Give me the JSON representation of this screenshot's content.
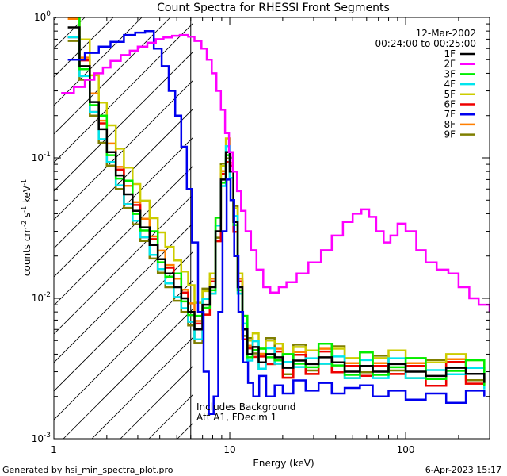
{
  "chart_data": {
    "type": "line",
    "title": "Count Spectra for RHESSI Front Segments",
    "xlabel": "Energy (keV)",
    "ylabel_parts": {
      "a": "counts cm",
      "sup1": "-2",
      "b": " s",
      "sup2": "-1",
      "c": " keV",
      "sup3": "-1"
    },
    "xscale": "log",
    "yscale": "log",
    "xlim": [
      1,
      300
    ],
    "ylim": [
      0.001,
      1
    ],
    "x_ticks": [
      {
        "value": 1,
        "label": "1"
      },
      {
        "value": 10,
        "label": "10"
      },
      {
        "value": 100,
        "label": "100"
      }
    ],
    "y_ticks": [
      {
        "value": 1,
        "base": "10",
        "exp": "0"
      },
      {
        "value": 0.1,
        "base": "10",
        "exp": "-1"
      },
      {
        "value": 0.01,
        "base": "10",
        "exp": "-2"
      },
      {
        "value": 0.001,
        "base": "10",
        "exp": "-3"
      }
    ],
    "hatch_region_keV": [
      1,
      6
    ],
    "date": "12-Mar-2002",
    "time_range": "00:24:00 to 00:25:00",
    "annotation_line1": "Includes Background",
    "annotation_line2": "Att A1, FDecim 1",
    "footer_left": "Generated by hsi_min_spectra_plot.pro",
    "footer_right": "6-Apr-2023 15:17",
    "series": [
      {
        "name": "1F",
        "color": "#000000"
      },
      {
        "name": "2F",
        "color": "#ff00ff"
      },
      {
        "name": "3F",
        "color": "#00ee00"
      },
      {
        "name": "4F",
        "color": "#00e5ee"
      },
      {
        "name": "5F",
        "color": "#cccc00"
      },
      {
        "name": "6F",
        "color": "#ee0000"
      },
      {
        "name": "7F",
        "color": "#0000ee"
      },
      {
        "name": "8F",
        "color": "#ff7f00"
      },
      {
        "name": "9F",
        "color": "#7f7f00"
      }
    ],
    "spectra_points": {
      "low_segments_E": [
        1.2,
        1.4,
        1.6,
        1.8,
        2.0,
        2.25,
        2.5,
        2.8,
        3.1,
        3.5,
        3.9,
        4.3,
        4.8,
        5.3,
        5.8,
        6.3,
        7.0,
        7.7,
        8.3,
        8.9,
        9.5,
        10.0,
        10.5,
        11.1,
        11.8,
        12.6,
        13.5,
        14.6,
        16.0,
        18.0,
        20.0,
        23.0,
        27.0,
        32.0,
        38.0,
        45.0,
        55.0,
        65.0,
        80.0,
        100.0,
        130.0,
        170.0,
        220.0,
        280.0
      ],
      "segment_1F": [
        0.85,
        0.45,
        0.25,
        0.16,
        0.11,
        0.075,
        0.055,
        0.042,
        0.032,
        0.024,
        0.019,
        0.015,
        0.012,
        0.01,
        0.008,
        0.006,
        0.009,
        0.012,
        0.03,
        0.07,
        0.11,
        0.08,
        0.035,
        0.012,
        0.006,
        0.004,
        0.0045,
        0.0035,
        0.004,
        0.0038,
        0.0032,
        0.0036,
        0.0034,
        0.0038,
        0.0035,
        0.003,
        0.0033,
        0.003,
        0.0034,
        0.003,
        0.0028,
        0.0032,
        0.0029,
        0.0025
      ],
      "segment_2F_E": [
        1.1,
        1.3,
        1.5,
        1.7,
        1.9,
        2.1,
        2.4,
        2.7,
        3.0,
        3.4,
        3.8,
        4.2,
        4.7,
        5.2,
        5.8,
        6.3,
        6.9,
        7.4,
        7.9,
        8.4,
        8.9,
        9.4,
        9.9,
        10.4,
        11.0,
        11.6,
        12.3,
        13.2,
        14.2,
        15.5,
        17.0,
        19.0,
        21.0,
        24.0,
        28.0,
        33.0,
        38.0,
        44.0,
        50.0,
        56.0,
        62.0,
        68.0,
        75.0,
        82.0,
        90.0,
        100.0,
        115.0,
        130.0,
        150.0,
        175.0,
        200.0,
        230.0,
        260.0,
        300.0
      ],
      "segment_2F": [
        0.29,
        0.32,
        0.36,
        0.4,
        0.44,
        0.49,
        0.54,
        0.58,
        0.62,
        0.66,
        0.7,
        0.72,
        0.74,
        0.75,
        0.73,
        0.68,
        0.6,
        0.5,
        0.4,
        0.3,
        0.22,
        0.15,
        0.11,
        0.08,
        0.058,
        0.042,
        0.03,
        0.022,
        0.016,
        0.012,
        0.011,
        0.012,
        0.013,
        0.015,
        0.018,
        0.022,
        0.028,
        0.035,
        0.04,
        0.043,
        0.038,
        0.03,
        0.025,
        0.028,
        0.034,
        0.03,
        0.022,
        0.018,
        0.016,
        0.015,
        0.012,
        0.01,
        0.009,
        0.008
      ],
      "segment_7F_E": [
        1.2,
        1.5,
        1.8,
        2.1,
        2.5,
        2.9,
        3.3,
        3.7,
        4.1,
        4.5,
        4.9,
        5.3,
        5.7,
        6.1,
        6.6,
        7.1,
        7.6,
        8.1,
        8.6,
        9.1,
        9.6,
        10.1,
        10.6,
        11.2,
        11.9,
        12.7,
        13.6,
        14.7,
        16.1,
        18.0,
        20.0,
        23.0,
        27.0,
        32.0,
        38.0,
        45.0,
        55.0,
        65.0,
        80.0,
        100.0,
        130.0,
        170.0,
        220.0,
        280.0
      ],
      "segment_7F": [
        0.5,
        0.56,
        0.62,
        0.67,
        0.75,
        0.78,
        0.8,
        0.6,
        0.45,
        0.3,
        0.2,
        0.12,
        0.06,
        0.025,
        0.008,
        0.003,
        0.0015,
        0.002,
        0.008,
        0.03,
        0.07,
        0.05,
        0.02,
        0.008,
        0.0035,
        0.0025,
        0.002,
        0.0028,
        0.002,
        0.0024,
        0.0021,
        0.0026,
        0.0022,
        0.0025,
        0.0021,
        0.0023,
        0.0024,
        0.002,
        0.0022,
        0.0019,
        0.0021,
        0.0018,
        0.0022,
        0.002
      ]
    }
  }
}
